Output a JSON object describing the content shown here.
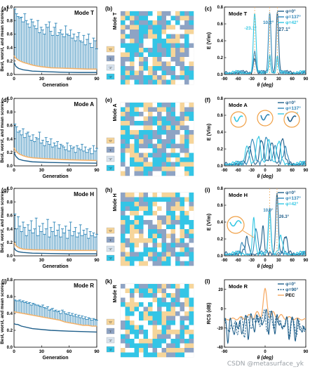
{
  "colors": {
    "blue_dark": "#1f5f8b",
    "blue_mid": "#2f86b8",
    "blue_light": "#32c7e3",
    "gray_tile": "#8ea3c4",
    "orange": "#f2b26b",
    "pale_gold": "#f6d59a",
    "cyan_tile": "#33c5e6",
    "pec": "#f6a75e",
    "callout": "#f0a046",
    "watermark": "#9aa0a6"
  },
  "watermark": "CSDN @metasurface_yk",
  "panels": {
    "a": {
      "label": "(a)",
      "mode": "Mode T"
    },
    "b": {
      "label": "(b)",
      "mode": "Mode T"
    },
    "c": {
      "label": "(c)",
      "mode": "Mode T"
    },
    "d": {
      "label": "(d)",
      "mode": "Mode A"
    },
    "e": {
      "label": "(e)",
      "mode": "Mode A"
    },
    "f": {
      "label": "(f)",
      "mode": "Mode A"
    },
    "g": {
      "label": "(g)",
      "mode": "Mode H"
    },
    "h": {
      "label": "(h)",
      "mode": "Mode H"
    },
    "i": {
      "label": "(i)",
      "mode": "Mode H"
    },
    "j": {
      "label": "(j)",
      "mode": "Mode R"
    },
    "k": {
      "label": "(k)",
      "mode": "Mode R"
    },
    "l": {
      "label": "(l)",
      "mode": "Mode R"
    }
  },
  "unit_legend": [
    "'0'",
    "'1'",
    "'2'",
    "'3'"
  ],
  "annotations": {
    "c": [
      "-23.1°",
      "10.2°",
      "27.1°"
    ],
    "i": [
      "10.0°",
      "26.3°"
    ]
  },
  "chart_data": [
    {
      "id": "a",
      "type": "line",
      "xlabel": "Generation",
      "ylabel": "Best, worst, and mean scores",
      "xlim": [
        0,
        90
      ],
      "ylim": [
        0,
        1.0
      ],
      "xticks": [
        "0",
        "30",
        "60",
        "90"
      ],
      "yticks": [
        "0.0",
        "0.2",
        "0.4",
        "0.6",
        "0.8",
        "1.0"
      ],
      "best": [
        [
          0,
          0.18
        ],
        [
          2,
          0.12
        ],
        [
          5,
          0.09
        ],
        [
          10,
          0.07
        ],
        [
          15,
          0.06
        ],
        [
          20,
          0.05
        ],
        [
          30,
          0.045
        ],
        [
          40,
          0.04
        ],
        [
          50,
          0.035
        ],
        [
          60,
          0.032
        ],
        [
          70,
          0.03
        ],
        [
          80,
          0.03
        ],
        [
          90,
          0.03
        ]
      ],
      "mean": [
        [
          0,
          0.28
        ],
        [
          2,
          0.24
        ],
        [
          5,
          0.21
        ],
        [
          10,
          0.18
        ],
        [
          15,
          0.16
        ],
        [
          20,
          0.14
        ],
        [
          25,
          0.125
        ],
        [
          30,
          0.115
        ],
        [
          40,
          0.1
        ],
        [
          50,
          0.095
        ],
        [
          60,
          0.09
        ],
        [
          70,
          0.085
        ],
        [
          80,
          0.08
        ],
        [
          90,
          0.08
        ]
      ],
      "worst": [
        0.97,
        0.9,
        0.86,
        0.84,
        0.85,
        0.78,
        0.9,
        0.8,
        0.75,
        0.7,
        0.82,
        0.78,
        0.72,
        0.68,
        0.8,
        0.62,
        0.7,
        0.66,
        0.6,
        0.74,
        0.7,
        0.78,
        0.64,
        0.58,
        0.7,
        0.76,
        0.58,
        0.62,
        0.66,
        0.6,
        0.56,
        0.72,
        0.6,
        0.58,
        0.66,
        0.54,
        0.6,
        0.5,
        0.56,
        0.62,
        0.5,
        0.48,
        0.58,
        0.44,
        0.52,
        0.6,
        0.46,
        0.4,
        0.54,
        0.5,
        0.38
      ]
    },
    {
      "id": "d",
      "type": "line",
      "xlabel": "Generation",
      "ylabel": "Best, worst, and mean scores",
      "xlim": [
        0,
        90
      ],
      "ylim": [
        0,
        1.0
      ],
      "xticks": [
        "0",
        "30",
        "60",
        "90"
      ],
      "yticks": [
        "0.0",
        "0.2",
        "0.4",
        "0.6",
        "0.8",
        "1.0"
      ],
      "best": [
        [
          0,
          0.2
        ],
        [
          2,
          0.14
        ],
        [
          5,
          0.1
        ],
        [
          10,
          0.08
        ],
        [
          20,
          0.06
        ],
        [
          40,
          0.05
        ],
        [
          60,
          0.045
        ],
        [
          90,
          0.04
        ]
      ],
      "mean": [
        [
          0,
          0.27
        ],
        [
          2,
          0.22
        ],
        [
          5,
          0.18
        ],
        [
          10,
          0.15
        ],
        [
          15,
          0.13
        ],
        [
          20,
          0.12
        ],
        [
          30,
          0.11
        ],
        [
          45,
          0.1
        ],
        [
          60,
          0.09
        ],
        [
          75,
          0.085
        ],
        [
          90,
          0.08
        ]
      ],
      "worst": [
        0.62,
        0.58,
        0.5,
        0.52,
        0.46,
        0.55,
        0.42,
        0.48,
        0.5,
        0.44,
        0.38,
        0.46,
        0.36,
        0.42,
        0.4,
        0.5,
        0.34,
        0.38,
        0.3,
        0.42,
        0.36,
        0.32,
        0.4,
        0.28,
        0.34,
        0.3,
        0.36,
        0.26,
        0.32,
        0.3,
        0.28,
        0.24,
        0.34,
        0.22,
        0.3,
        0.26,
        0.28,
        0.2,
        0.3,
        0.26,
        0.24,
        0.32,
        0.22,
        0.28,
        0.2,
        0.24,
        0.26,
        0.18,
        0.3,
        0.22,
        0.26
      ]
    },
    {
      "id": "g",
      "type": "line",
      "xlabel": "Generation",
      "ylabel": "Best, worst, and mean scores",
      "xlim": [
        0,
        90
      ],
      "ylim": [
        0,
        1.0
      ],
      "xticks": [
        "0",
        "30",
        "60",
        "90"
      ],
      "yticks": [
        "0.0",
        "0.2",
        "0.4",
        "0.6",
        "0.8",
        "1.0"
      ],
      "best": [
        [
          0,
          0.12
        ],
        [
          2,
          0.08
        ],
        [
          5,
          0.06
        ],
        [
          10,
          0.05
        ],
        [
          20,
          0.04
        ],
        [
          40,
          0.035
        ],
        [
          60,
          0.03
        ],
        [
          90,
          0.03
        ]
      ],
      "mean": [
        [
          0,
          0.2
        ],
        [
          2,
          0.15
        ],
        [
          5,
          0.12
        ],
        [
          10,
          0.1
        ],
        [
          20,
          0.09
        ],
        [
          40,
          0.085
        ],
        [
          60,
          0.08
        ],
        [
          90,
          0.08
        ]
      ],
      "worst": [
        0.62,
        0.4,
        0.58,
        0.44,
        0.36,
        0.5,
        0.42,
        0.3,
        0.46,
        0.38,
        0.52,
        0.34,
        0.4,
        0.56,
        0.3,
        0.44,
        0.36,
        0.48,
        0.32,
        0.4,
        0.54,
        0.28,
        0.42,
        0.36,
        0.5,
        0.3,
        0.38,
        0.46,
        0.28,
        0.4,
        0.34,
        0.44,
        0.26,
        0.38,
        0.5,
        0.3,
        0.36,
        0.42,
        0.28,
        0.34,
        0.46,
        0.3,
        0.38,
        0.32,
        0.4,
        0.26,
        0.36,
        0.3,
        0.34,
        0.28,
        0.32
      ]
    },
    {
      "id": "j",
      "type": "line",
      "xlabel": "Generation",
      "ylabel": "Best, worst, and mean scores",
      "xlim": [
        0,
        90
      ],
      "ylim": [
        0,
        0.8
      ],
      "xticks": [
        "0",
        "30",
        "60",
        "90"
      ],
      "yticks": [
        "0.0",
        "0.2",
        "0.4",
        "0.6",
        "0.8"
      ],
      "best": [
        [
          0,
          0.28
        ],
        [
          2,
          0.27
        ],
        [
          4,
          0.27
        ],
        [
          8,
          0.25
        ],
        [
          20,
          0.22
        ],
        [
          40,
          0.2
        ],
        [
          60,
          0.19
        ],
        [
          90,
          0.18
        ]
      ],
      "mean": [
        [
          0,
          0.42
        ],
        [
          5,
          0.41
        ],
        [
          10,
          0.4
        ],
        [
          15,
          0.39
        ],
        [
          20,
          0.38
        ],
        [
          25,
          0.37
        ],
        [
          30,
          0.36
        ],
        [
          35,
          0.35
        ],
        [
          40,
          0.34
        ],
        [
          45,
          0.33
        ],
        [
          50,
          0.32
        ],
        [
          55,
          0.3
        ],
        [
          60,
          0.29
        ],
        [
          65,
          0.28
        ],
        [
          70,
          0.27
        ],
        [
          75,
          0.26
        ],
        [
          80,
          0.26
        ],
        [
          85,
          0.25
        ],
        [
          90,
          0.25
        ]
      ],
      "worst": [
        0.56,
        0.55,
        0.55,
        0.56,
        0.54,
        0.55,
        0.53,
        0.54,
        0.52,
        0.53,
        0.5,
        0.52,
        0.51,
        0.5,
        0.5,
        0.49,
        0.48,
        0.5,
        0.47,
        0.46,
        0.48,
        0.44,
        0.45,
        0.46,
        0.43,
        0.44,
        0.42,
        0.43,
        0.4,
        0.44,
        0.42,
        0.4,
        0.39,
        0.41,
        0.38,
        0.4,
        0.37,
        0.39,
        0.36,
        0.38,
        0.35,
        0.37,
        0.34,
        0.36,
        0.33,
        0.35,
        0.34,
        0.32,
        0.34,
        0.33,
        0.32
      ]
    },
    {
      "id": "c",
      "type": "line",
      "xlabel": "θ (deg)",
      "ylabel": "E (V/m)",
      "xlim": [
        -90,
        90
      ],
      "ylim": [
        0,
        0.8
      ],
      "xticks": [
        "-90",
        "-60",
        "-30",
        "0",
        "30",
        "60",
        "90"
      ],
      "yticks": [
        "0.0",
        "0.2",
        "0.4",
        "0.6",
        "0.8"
      ],
      "series": [
        {
          "name": "φ=0°",
          "color": "#1f5f8b",
          "peaks": [
            [
              27.1,
              0.72,
              4
            ],
            [
              -23.1,
              0.18,
              4
            ],
            [
              10.2,
              0.2,
              3
            ]
          ],
          "ripple": 0.04
        },
        {
          "name": "φ=137°",
          "color": "#2f86b8",
          "peaks": [
            [
              10.2,
              0.72,
              4
            ],
            [
              -23.1,
              0.25,
              4
            ],
            [
              27.1,
              0.2,
              3
            ]
          ],
          "ripple": 0.04
        },
        {
          "name": "φ=42°",
          "color": "#32c7e3",
          "peaks": [
            [
              -23.1,
              0.71,
              4
            ],
            [
              10.2,
              0.22,
              3
            ],
            [
              27.1,
              0.18,
              3
            ]
          ],
          "ripple": 0.04
        }
      ]
    },
    {
      "id": "f",
      "type": "line",
      "xlabel": "θ (deg)",
      "ylabel": "E (V/m)",
      "xlim": [
        -90,
        90
      ],
      "ylim": [
        0,
        0.8
      ],
      "xticks": [
        "-90",
        "-60",
        "-30",
        "0",
        "30",
        "60",
        "90"
      ],
      "yticks": [
        "0.0",
        "0.2",
        "0.4",
        "0.6",
        "0.8"
      ],
      "series": [
        {
          "name": "φ=0°",
          "color": "#1f5f8b",
          "peaks": [
            [
              -35,
              0.2,
              7
            ],
            [
              -8,
              0.28,
              6
            ],
            [
              15,
              0.26,
              6
            ],
            [
              38,
              0.3,
              6
            ]
          ],
          "ripple": 0.05
        },
        {
          "name": "φ=137°",
          "color": "#2f86b8",
          "peaks": [
            [
              -28,
              0.3,
              7
            ],
            [
              3,
              0.32,
              6
            ],
            [
              22,
              0.22,
              6
            ],
            [
              45,
              0.18,
              6
            ]
          ],
          "ripple": 0.05
        },
        {
          "name": "φ=42°",
          "color": "#32c7e3",
          "peaks": [
            [
              -40,
              0.22,
              6
            ],
            [
              -15,
              0.32,
              6
            ],
            [
              8,
              0.3,
              6
            ],
            [
              30,
              0.26,
              6
            ]
          ],
          "ripple": 0.05
        }
      ]
    },
    {
      "id": "i",
      "type": "line",
      "xlabel": "θ (deg)",
      "ylabel": "E (V/m)",
      "xlim": [
        -90,
        90
      ],
      "ylim": [
        0,
        0.8
      ],
      "xticks": [
        "-90",
        "-60",
        "-30",
        "0",
        "30",
        "60",
        "90"
      ],
      "yticks": [
        "0.0",
        "0.2",
        "0.4",
        "0.6",
        "0.8"
      ],
      "series": [
        {
          "name": "φ=0°",
          "color": "#1f5f8b",
          "peaks": [
            [
              26.3,
              0.72,
              4
            ],
            [
              -5,
              0.3,
              4
            ],
            [
              -40,
              0.18,
              5
            ],
            [
              45,
              0.2,
              5
            ]
          ],
          "ripple": 0.06
        },
        {
          "name": "φ=137°",
          "color": "#2f86b8",
          "peaks": [
            [
              10.0,
              0.55,
              4
            ],
            [
              -20,
              0.3,
              5
            ],
            [
              -50,
              0.12,
              5
            ]
          ],
          "ripple": 0.05
        },
        {
          "name": "φ=42°",
          "color": "#32c7e3",
          "peaks": [
            [
              -25,
              0.42,
              4
            ],
            [
              10.0,
              0.5,
              4
            ],
            [
              35,
              0.2,
              5
            ]
          ],
          "ripple": 0.05
        }
      ]
    },
    {
      "id": "l",
      "type": "line",
      "xlabel": "θ (deg)",
      "ylabel": "RCS (dB)",
      "xlim": [
        -90,
        90
      ],
      "ylim": [
        -40,
        30
      ],
      "xticks": [
        "-90",
        "0",
        "90"
      ],
      "yticks": [
        "-40",
        "-20",
        "0",
        "20"
      ],
      "series": [
        {
          "name": "φ=0°",
          "color": "#1f5f8b",
          "style": "solid"
        },
        {
          "name": "φ=90°",
          "color": "#1f5f8b",
          "style": "dash"
        },
        {
          "name": "PEC",
          "color": "#f6a75e",
          "style": "solid"
        }
      ]
    }
  ]
}
